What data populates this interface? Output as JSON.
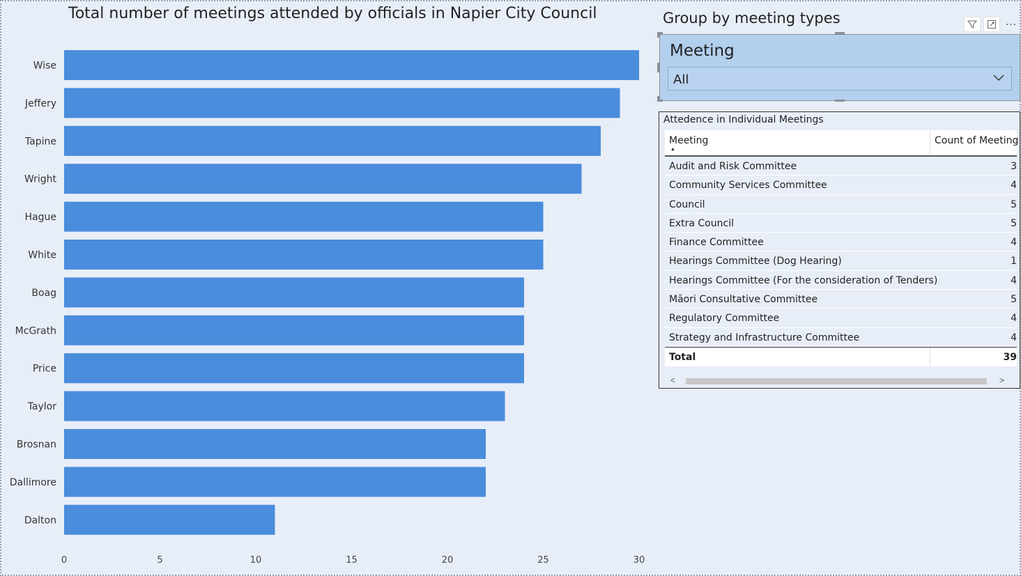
{
  "chart": {
    "title": "Total number of meetings attended by officials in Napier City Council"
  },
  "chart_data": {
    "type": "bar",
    "orientation": "horizontal",
    "title": "Total number of meetings attended by officials in Napier City Council",
    "categories": [
      "Wise",
      "Jeffery",
      "Tapine",
      "Wright",
      "Hague",
      "White",
      "Boag",
      "McGrath",
      "Price",
      "Taylor",
      "Brosnan",
      "Dallimore",
      "Dalton"
    ],
    "values": [
      30,
      29,
      28,
      27,
      25,
      25,
      24,
      24,
      24,
      23,
      22,
      22,
      11
    ],
    "xlim": [
      0,
      30
    ],
    "xticks": [
      0,
      5,
      10,
      15,
      20,
      25,
      30
    ],
    "xlabel": "",
    "ylabel": "",
    "grid": false,
    "bar_color": "#4a8ddc"
  },
  "slicer": {
    "title": "Group by meeting types",
    "header": "Meeting",
    "selected": "All"
  },
  "visual_header": {
    "filter_icon": "filter-icon",
    "focus_icon": "focus-mode-icon",
    "more_icon": "more-options-icon",
    "more_label": "⋯"
  },
  "table": {
    "title": "Attedence in Individual Meetings",
    "columns": [
      "Meeting",
      "Count of Meeting"
    ],
    "rows": [
      {
        "meeting": "Audit and Risk Committee",
        "count": "3"
      },
      {
        "meeting": "Community Services Committee",
        "count": "4"
      },
      {
        "meeting": "Council",
        "count": "5"
      },
      {
        "meeting": "Extra Council",
        "count": "5"
      },
      {
        "meeting": "Finance Committee",
        "count": "4"
      },
      {
        "meeting": "Hearings Committee (Dog Hearing)",
        "count": "1"
      },
      {
        "meeting": "Hearings Committee (For the consideration of Tenders)",
        "count": "4"
      },
      {
        "meeting": "Māori Consultative Committee",
        "count": "5"
      },
      {
        "meeting": "Regulatory Committee",
        "count": "4"
      },
      {
        "meeting": "Strategy and Infrastructure Committee",
        "count": "4"
      }
    ],
    "total_label": "Total",
    "total_value": "39",
    "scroll_left": "<",
    "scroll_right": ">"
  },
  "colors": {
    "background": "#e8eef8",
    "bar": "#4a8ddc",
    "slicer_fill": "#b3cfee"
  }
}
